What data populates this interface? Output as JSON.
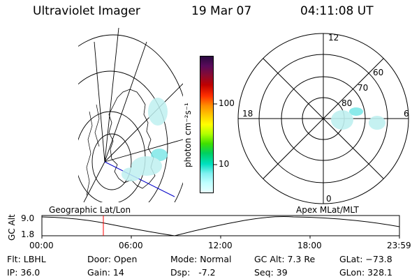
{
  "header": {
    "instrument": "Ultraviolet Imager",
    "date": "19 Mar 07",
    "time": "04:11:08 UT"
  },
  "colorbar": {
    "unit_label": "photon cm⁻²s⁻¹",
    "ticks": [
      "100",
      "10"
    ],
    "colors": [
      "#2a0a40",
      "#5a0a5a",
      "#8a0a30",
      "#c00000",
      "#ff3000",
      "#ff8c00",
      "#ffc800",
      "#ffff00",
      "#b0ff00",
      "#40e000",
      "#00d060",
      "#00e0c0",
      "#80f0f0",
      "#c0ffff",
      "#e8ffff"
    ]
  },
  "polar_plot": {
    "mlt_labels": {
      "top": "12",
      "right": "6",
      "bottom": "0",
      "left": "18"
    },
    "lat_labels": [
      "60",
      "70",
      "80"
    ]
  },
  "timeline": {
    "left_label": "Geographic Lat/Lon",
    "right_label": "Apex MLat/MLT",
    "y_axis_label": "GC Alt",
    "y_ticks": [
      "9.0",
      "1.8"
    ],
    "x_ticks": [
      "00:00",
      "06:00",
      "12:00",
      "18:00",
      "23:59"
    ],
    "marker_color": "#ff0000"
  },
  "info": {
    "flt": "Flt: LBHL",
    "ip": "IP: 36.0",
    "door": "Door: Open",
    "gain": "Gain: 14",
    "mode": "Mode: Normal",
    "dsp": "Dsp:   -7.2",
    "gc_alt": "GC Alt: 7.3 Re",
    "seq": "Seq: 39",
    "glat": "GLat: −73.8",
    "glon": "GLon: 328.1"
  }
}
